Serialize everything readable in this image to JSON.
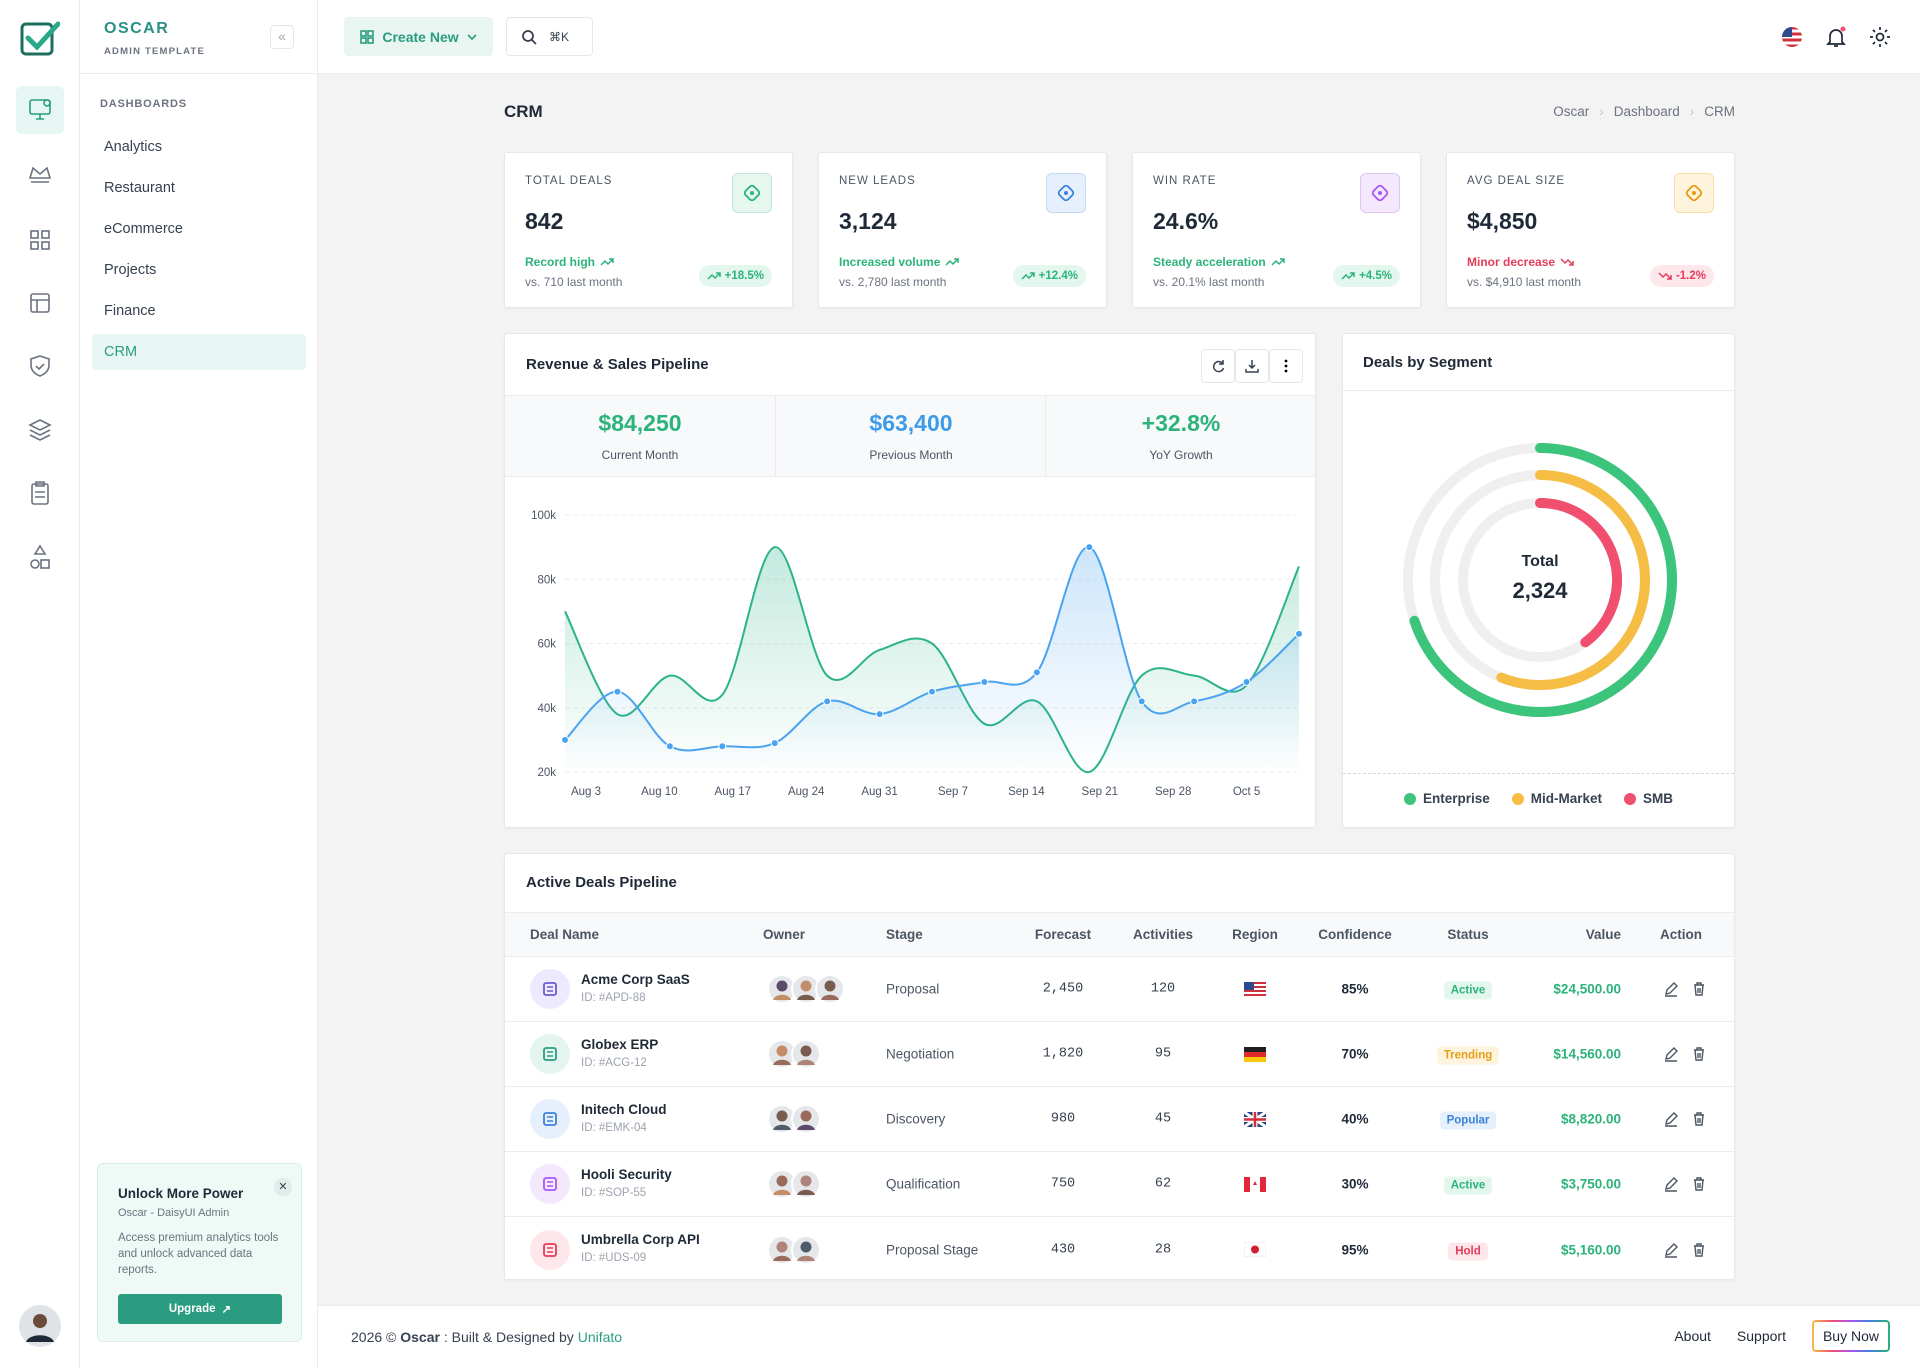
{
  "brand": {
    "name": "OSCAR",
    "subtitle": "ADMIN TEMPLATE"
  },
  "topbar": {
    "create": "Create New",
    "shortcut": "⌘K"
  },
  "sidebar": {
    "section": "DASHBOARDS",
    "items": [
      "Analytics",
      "Restaurant",
      "eCommerce",
      "Projects",
      "Finance",
      "CRM"
    ]
  },
  "promo": {
    "title": "Unlock More Power",
    "subtitle": "Oscar - DaisyUI Admin",
    "text": "Access premium analytics tools and unlock advanced data reports.",
    "button": "Upgrade"
  },
  "page": {
    "title": "CRM",
    "breadcrumb": [
      "Oscar",
      "Dashboard",
      "CRM"
    ]
  },
  "stats": [
    {
      "label": "TOTAL DEALS",
      "value": "842",
      "note": "Record high",
      "compare": "vs. 710 last month",
      "change": "+18.5%"
    },
    {
      "label": "NEW LEADS",
      "value": "3,124",
      "note": "Increased volume",
      "compare": "vs. 2,780 last month",
      "change": "+12.4%"
    },
    {
      "label": "WIN RATE",
      "value": "24.6%",
      "note": "Steady acceleration",
      "compare": "vs. 20.1% last month",
      "change": "+4.5%"
    },
    {
      "label": "AVG DEAL SIZE",
      "value": "$4,850",
      "note": "Minor decrease",
      "compare": "vs. $4,910 last month",
      "change": "-1.2%"
    }
  ],
  "revenue_summary": [
    {
      "value": "$84,250",
      "label": "Current Month"
    },
    {
      "value": "$63,400",
      "label": "Previous Month"
    },
    {
      "value": "+32.8%",
      "label": "YoY Growth"
    }
  ],
  "chart_data": [
    {
      "type": "line",
      "title": "Revenue & Sales Pipeline",
      "x": [
        "Aug 1",
        "Aug 6",
        "Aug 11",
        "Aug 16",
        "Aug 21",
        "Aug 26",
        "Aug 31",
        "Sep 5",
        "Sep 10",
        "Sep 15",
        "Sep 20",
        "Sep 25",
        "Sep 30",
        "Oct 5",
        "Oct 10"
      ],
      "xlim": [
        "Aug 1",
        "Oct 10"
      ],
      "xticks": [
        "Aug 3",
        "Aug 10",
        "Aug 17",
        "Aug 24",
        "Aug 31",
        "Sep 7",
        "Sep 14",
        "Sep 21",
        "Sep 28",
        "Oct 5"
      ],
      "ylim": [
        20000,
        100000
      ],
      "yticks": [
        {
          "value": 20000,
          "label": "20k"
        },
        {
          "value": 40000,
          "label": "40k"
        },
        {
          "value": 60000,
          "label": "60k"
        },
        {
          "value": 80000,
          "label": "80k"
        },
        {
          "value": 100000,
          "label": "100k"
        }
      ],
      "grid": true,
      "series": [
        {
          "color": "#2bb38a",
          "values": [
            70000,
            38000,
            50000,
            44000,
            90000,
            50000,
            58000,
            60000,
            35000,
            42000,
            20000,
            50000,
            50000,
            47000,
            84000
          ]
        },
        {
          "color": "#4aa3f0",
          "values": [
            30000,
            45000,
            28000,
            28000,
            29000,
            42000,
            38000,
            45000,
            48000,
            51000,
            90000,
            42000,
            42000,
            48000,
            63000
          ]
        }
      ]
    },
    {
      "type": "radialBar",
      "title": "Deals by Segment",
      "total_label": "Total",
      "total": "2,324",
      "categories": [
        "Enterprise",
        "Mid-Market",
        "SMB"
      ],
      "values": [
        70,
        56,
        40
      ],
      "colors": [
        "#3cc47c",
        "#f6bd45",
        "#f0506e"
      ],
      "ylim": [
        0,
        100
      ]
    }
  ],
  "deals": {
    "title": "Active Deals Pipeline",
    "columns": [
      "Deal Name",
      "Owner",
      "Stage",
      "Forecast",
      "Activities",
      "Region",
      "Confidence",
      "Status",
      "Value",
      "Action"
    ],
    "rows": [
      {
        "name": "Acme Corp SaaS",
        "id": "ID: #APD-88",
        "stage": "Proposal",
        "forecast": "2,450",
        "activities": "120",
        "confidence": "85%",
        "status": "Active",
        "value": "$24,500.00"
      },
      {
        "name": "Globex ERP",
        "id": "ID: #ACG-12",
        "stage": "Negotiation",
        "forecast": "1,820",
        "activities": "95",
        "confidence": "70%",
        "status": "Trending",
        "value": "$14,560.00"
      },
      {
        "name": "Initech Cloud",
        "id": "ID: #EMK-04",
        "stage": "Discovery",
        "forecast": "980",
        "activities": "45",
        "confidence": "40%",
        "status": "Popular",
        "value": "$8,820.00"
      },
      {
        "name": "Hooli Security",
        "id": "ID: #SOP-55",
        "stage": "Qualification",
        "forecast": "750",
        "activities": "62",
        "confidence": "30%",
        "status": "Active",
        "value": "$3,750.00"
      },
      {
        "name": "Umbrella Corp API",
        "id": "ID: #UDS-09",
        "stage": "Proposal Stage",
        "forecast": "430",
        "activities": "28",
        "confidence": "95%",
        "status": "Hold",
        "value": "$5,160.00"
      }
    ]
  },
  "footer": {
    "year": "2026 ©",
    "brand": "Oscar",
    "built": ": Built & Designed by",
    "author": "Unifato",
    "links": [
      "About",
      "Support",
      "Buy Now"
    ]
  }
}
